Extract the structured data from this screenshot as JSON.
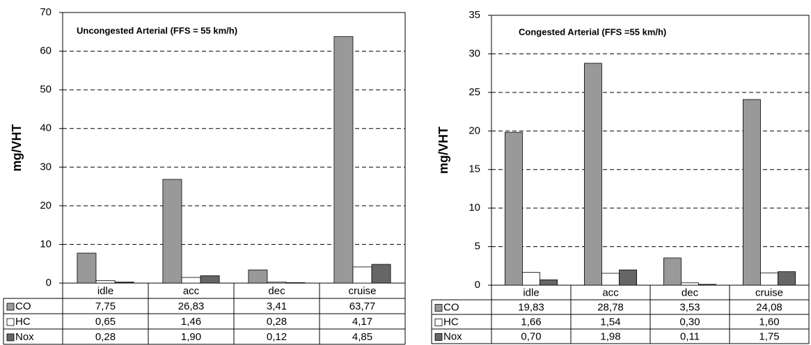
{
  "chart_data": [
    {
      "type": "bar",
      "title": "Uncongested Arterial   (FFS = 55 km/h)",
      "y_label": "mg/VHT",
      "categories": [
        "idle",
        "acc",
        "dec",
        "cruise"
      ],
      "series": [
        {
          "name": "CO",
          "color": "#999999",
          "values": [
            7.75,
            26.83,
            3.41,
            63.77
          ],
          "value_labels": [
            "7,75",
            "26,83",
            "3,41",
            "63,77"
          ]
        },
        {
          "name": "HC",
          "color": "#ffffff",
          "values": [
            0.65,
            1.46,
            0.28,
            4.17
          ],
          "value_labels": [
            "0,65",
            "1,46",
            "0,28",
            "4,17"
          ]
        },
        {
          "name": "Nox",
          "color": "#666666",
          "values": [
            0.28,
            1.9,
            0.12,
            4.85
          ],
          "value_labels": [
            "0,28",
            "1,90",
            "0,12",
            "4,85"
          ]
        }
      ],
      "ylim": [
        0,
        70
      ],
      "yticks": [
        0,
        10,
        20,
        30,
        40,
        50,
        60,
        70
      ],
      "grid": true
    },
    {
      "type": "bar",
      "title": "Congested Arterial (FFS =55 km/h)",
      "y_label": "mg/VHT",
      "categories": [
        "idle",
        "acc",
        "dec",
        "cruise"
      ],
      "series": [
        {
          "name": "CO",
          "color": "#999999",
          "values": [
            19.83,
            28.78,
            3.53,
            24.08
          ],
          "value_labels": [
            "19,83",
            "28,78",
            "3,53",
            "24,08"
          ]
        },
        {
          "name": "HC",
          "color": "#ffffff",
          "values": [
            1.66,
            1.54,
            0.3,
            1.6
          ],
          "value_labels": [
            "1,66",
            "1,54",
            "0,30",
            "1,60"
          ]
        },
        {
          "name": "Nox",
          "color": "#666666",
          "values": [
            0.7,
            1.98,
            0.11,
            1.75
          ],
          "value_labels": [
            "0,70",
            "1,98",
            "0,11",
            "1,75"
          ]
        }
      ],
      "ylim": [
        0,
        35
      ],
      "yticks": [
        0,
        5,
        10,
        15,
        20,
        25,
        30,
        35
      ],
      "grid": true
    }
  ]
}
